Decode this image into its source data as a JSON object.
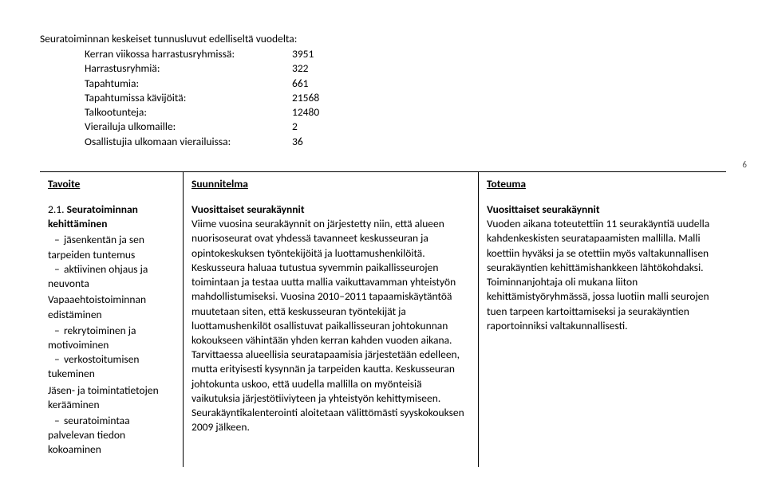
{
  "page_number": "6",
  "stats": {
    "title": "Seuratoiminnan keskeiset tunnusluvut edelliseltä vuodelta:",
    "rows": [
      {
        "label": "Kerran viikossa harrastusryhmissä:",
        "value": "3951"
      },
      {
        "label": "Harrastusryhmiä:",
        "value": "322"
      },
      {
        "label": "Tapahtumia:",
        "value": "661"
      },
      {
        "label": "Tapahtumissa kävijöitä:",
        "value": "21568"
      },
      {
        "label": "Talkootunteja:",
        "value": "12480"
      },
      {
        "label": "Vierailuja ulkomaille:",
        "value": "2"
      },
      {
        "label": "Osallistujia ulkomaan vierailuissa:",
        "value": "36"
      }
    ]
  },
  "headers": {
    "col1": "Tavoite",
    "col2": "Suunnitelma",
    "col3": "Toteuma"
  },
  "col1": {
    "section_number": "2.1.",
    "section_title": "Seuratoiminnan kehittäminen",
    "b1": "jäsenkentän ja sen tarpeiden tuntemus",
    "b2": "aktiivinen ohjaus ja neuvonta",
    "sub1": "Vapaaehtoistoiminnan edistäminen",
    "b3": "rekrytoiminen ja motivoiminen",
    "b4": "verkostoitumisen tukeminen",
    "sub2": "Jäsen- ja toimintatietojen kerääminen",
    "b5": "seuratoimintaa palvelevan tiedon kokoaminen"
  },
  "col2": {
    "heading": "Vuosittaiset seurakäynnit",
    "body": "Viime vuosina seurakäynnit on järjestetty niin, että alueen nuorisoseurat ovat yhdessä tavanneet keskusseuran ja opintokeskuksen työntekijöitä ja luottamushenkilöitä. Keskusseura haluaa tutustua syvemmin paikallisseurojen toimintaan ja testaa uutta mallia vaikuttavamman yhteistyön mahdollistumiseksi. Vuosina 2010–2011 tapaamiskäytäntöä muutetaan siten, että keskusseuran työntekijät ja luottamushenkilöt osallistuvat paikallisseuran johtokunnan kokoukseen vähintään yhden kerran kahden vuoden aikana. Tarvittaessa alueellisia seuratapaamisia järjestetään edelleen, mutta erityisesti kysynnän ja tarpeiden kautta. Keskusseuran johtokunta uskoo, että uudella mallilla on myönteisiä vaikutuksia järjestötiiviyteen ja yhteistyön kehittymiseen. Seurakäyntikalenterointi aloitetaan välittömästi syyskokouksen 2009 jälkeen."
  },
  "col3": {
    "heading": "Vuosittaiset seurakäynnit",
    "body": "Vuoden aikana toteutettiin 11 seurakäyntiä uudella kahdenkeskisten seuratapaamisten mallilla. Malli koettiin hyväksi ja se otettiin myös valtakunnallisen seurakäyntien kehittämishankkeen lähtökohdaksi. Toiminnanjohtaja oli mukana liiton kehittämistyöryhmässä, jossa luotiin malli seurojen tuen tarpeen kartoittamiseksi ja seurakäyntien raportoinniksi valtakunnallisesti."
  }
}
